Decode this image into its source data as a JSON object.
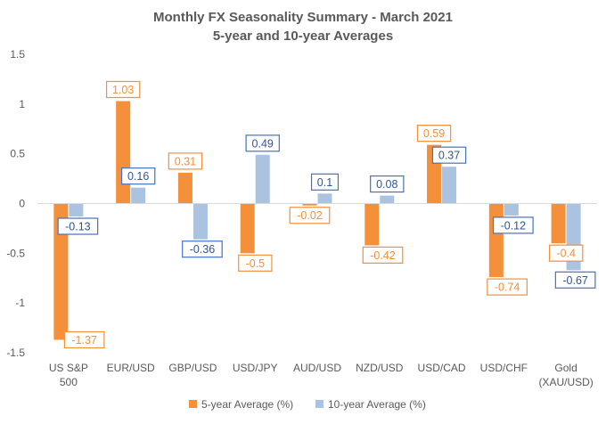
{
  "chart_data": {
    "type": "bar",
    "title": "Monthly FX Seasonality Summary - March 2021",
    "subtitle": "5-year and 10-year Averages",
    "categories": [
      [
        "US S&P",
        "500"
      ],
      [
        "EUR/USD"
      ],
      [
        "GBP/USD"
      ],
      [
        "USD/JPY"
      ],
      [
        "AUD/USD"
      ],
      [
        "NZD/USD"
      ],
      [
        "USD/CAD"
      ],
      [
        "USD/CHF"
      ],
      [
        "Gold",
        "(XAU/USD)"
      ]
    ],
    "series": [
      {
        "name": "5-year Average (%)",
        "color": "#F4903A",
        "values": [
          -1.37,
          1.03,
          0.31,
          -0.5,
          -0.02,
          -0.42,
          0.59,
          -0.74,
          -0.4
        ],
        "labels": [
          "-1.37",
          "1.03",
          "0.31",
          "-0.5",
          "-0.02",
          "-0.42",
          "0.59",
          "-0.74",
          "-0.4"
        ]
      },
      {
        "name": "10-year Average (%)",
        "color": "#A9C3E0",
        "label_border_color": "#4472C4",
        "values": [
          -0.13,
          0.16,
          -0.36,
          0.49,
          0.1,
          0.08,
          0.37,
          -0.12,
          -0.67
        ],
        "labels": [
          "-0.13",
          "0.16",
          "-0.36",
          "0.49",
          "0.1",
          "0.08",
          "0.37",
          "-0.12",
          "-0.67"
        ]
      }
    ],
    "y_ticks": [
      "1.5",
      "1",
      "0.5",
      "0",
      "-0.5",
      "-1",
      "-1.5"
    ],
    "ylim": [
      -1.5,
      1.5
    ],
    "grid": false,
    "legend": "bottom"
  }
}
